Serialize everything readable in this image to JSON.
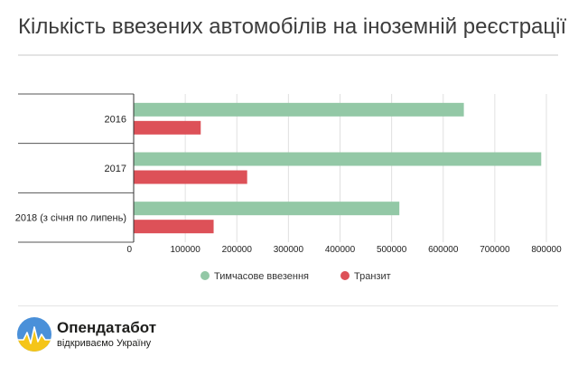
{
  "chart_data": {
    "type": "bar",
    "orientation": "horizontal",
    "title": "Кількість ввезених автомобілів на іноземній реєстрації",
    "categories": [
      "2016",
      "2017",
      "2018 (з січня по липень)"
    ],
    "series": [
      {
        "name": "Тимчасове ввезення",
        "color": "#93c8a6",
        "values": [
          640000,
          790000,
          515000
        ]
      },
      {
        "name": "Транзит",
        "color": "#dd5158",
        "values": [
          130000,
          220000,
          155000
        ]
      }
    ],
    "xlim": [
      0,
      800000
    ],
    "xticks": [
      "0",
      "100000",
      "200000",
      "300000",
      "400000",
      "500000",
      "600000",
      "700000",
      "800000"
    ],
    "grid": true,
    "legend": "bottom"
  },
  "branding": {
    "name": "Опендатабот",
    "tagline": "відкриваємо Україну",
    "logo_icon": "opendatabot-logo-icon"
  }
}
